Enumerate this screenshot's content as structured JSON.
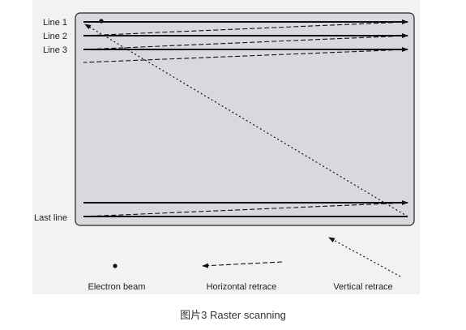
{
  "labels": {
    "line1": "Line 1",
    "line2": "Line 2",
    "line3": "Line 3",
    "last_line": "Last line"
  },
  "legend": {
    "electron_beam": "Electron beam",
    "horizontal_retrace": "Horizontal retrace",
    "vertical_retrace": "Vertical retrace"
  },
  "caption": "图片3 Raster scanning",
  "colors": {
    "screen_fill": "#d8d9dc",
    "figure_background": "#f2f2f2",
    "line_color": "#111111"
  }
}
